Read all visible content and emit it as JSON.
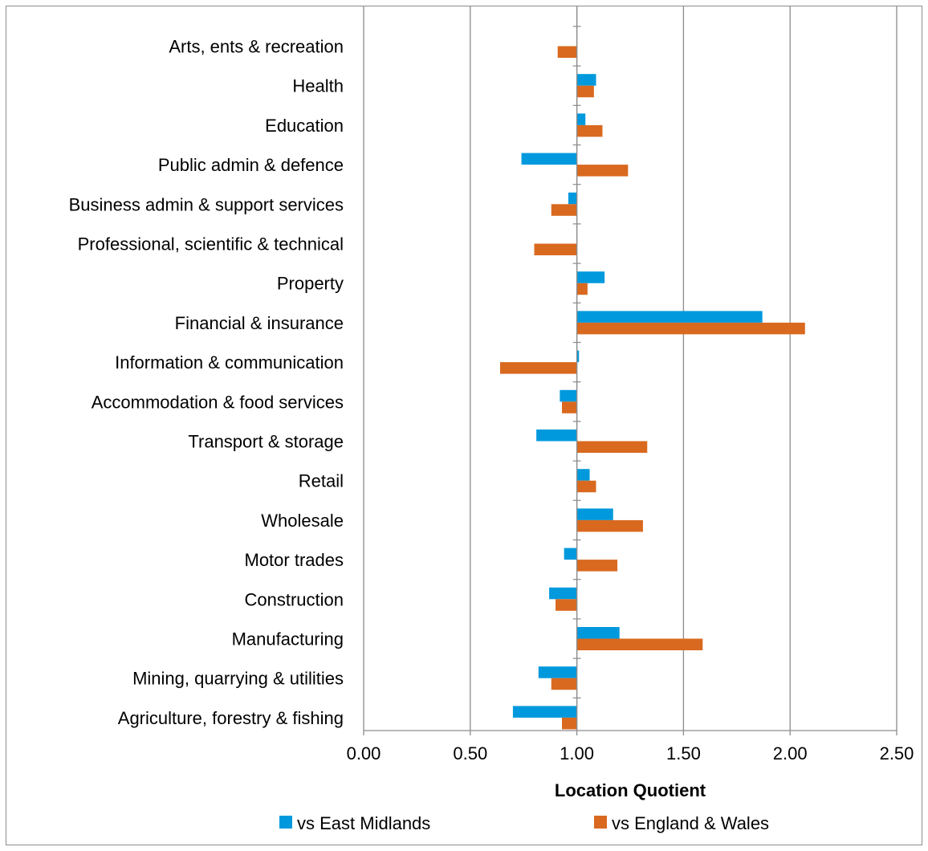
{
  "chart_data": {
    "type": "bar",
    "orientation": "horizontal",
    "categories": [
      "Arts, ents & recreation",
      "Health",
      "Education",
      "Public admin & defence",
      "Business admin & support services",
      "Professional, scientific & technical",
      "Property",
      "Financial & insurance",
      "Information & communication",
      "Accommodation & food services",
      "Transport & storage",
      "Retail",
      "Wholesale",
      "Motor trades",
      "Construction",
      "Manufacturing",
      "Mining, quarrying & utilities",
      "Agriculture, forestry & fishing"
    ],
    "series": [
      {
        "name": "vs East Midlands",
        "color": "#0099dd",
        "values": [
          1.0,
          1.09,
          1.04,
          0.74,
          0.96,
          1.0,
          1.13,
          1.87,
          1.01,
          0.92,
          0.81,
          1.06,
          1.17,
          0.94,
          0.87,
          1.2,
          0.82,
          0.7
        ]
      },
      {
        "name": "vs England & Wales",
        "color": "#d9691f",
        "values": [
          0.91,
          1.08,
          1.12,
          1.24,
          0.88,
          0.8,
          1.05,
          2.07,
          0.64,
          0.93,
          1.33,
          1.09,
          1.31,
          1.19,
          0.9,
          1.59,
          0.88,
          0.93
        ]
      }
    ],
    "baseline": 1.0,
    "xlabel": "Location Quotient",
    "ylabel": "",
    "xlim": [
      0,
      2.5
    ],
    "xticks": [
      "0.00",
      "0.50",
      "1.00",
      "1.50",
      "2.00",
      "2.50"
    ],
    "grid": "vertical",
    "legend": "bottom"
  }
}
